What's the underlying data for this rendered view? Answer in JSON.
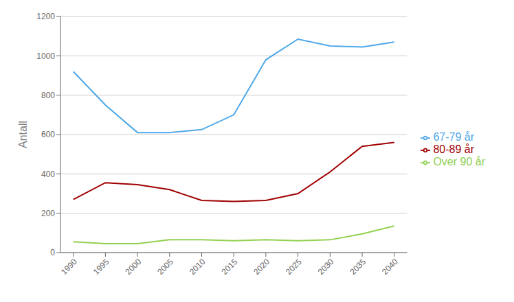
{
  "chart_data": {
    "type": "line",
    "x": [
      1990,
      1995,
      2000,
      2005,
      2010,
      2015,
      2020,
      2025,
      2030,
      2035,
      2040
    ],
    "series": [
      {
        "name": "67-79 år",
        "color": "#4FA8E8",
        "values": [
          920,
          750,
          610,
          610,
          625,
          700,
          980,
          1085,
          1050,
          1045,
          1070
        ]
      },
      {
        "name": "80-89 år",
        "color": "#A00000",
        "values": [
          270,
          355,
          345,
          320,
          265,
          260,
          265,
          300,
          410,
          540,
          560
        ]
      },
      {
        "name": "Over 90 år",
        "color": "#92D050",
        "values": [
          55,
          45,
          45,
          65,
          65,
          60,
          65,
          60,
          65,
          95,
          135
        ]
      }
    ],
    "ylabel": "Antall",
    "xlim": [
      1988,
      2042
    ],
    "xticks": [
      1990,
      1995,
      2000,
      2005,
      2010,
      2015,
      2020,
      2025,
      2030,
      2035,
      2040
    ],
    "ylim": [
      0,
      1200
    ],
    "yticks": [
      0,
      200,
      400,
      600,
      800,
      1000,
      1200
    ],
    "grid": true,
    "legend": "right"
  }
}
